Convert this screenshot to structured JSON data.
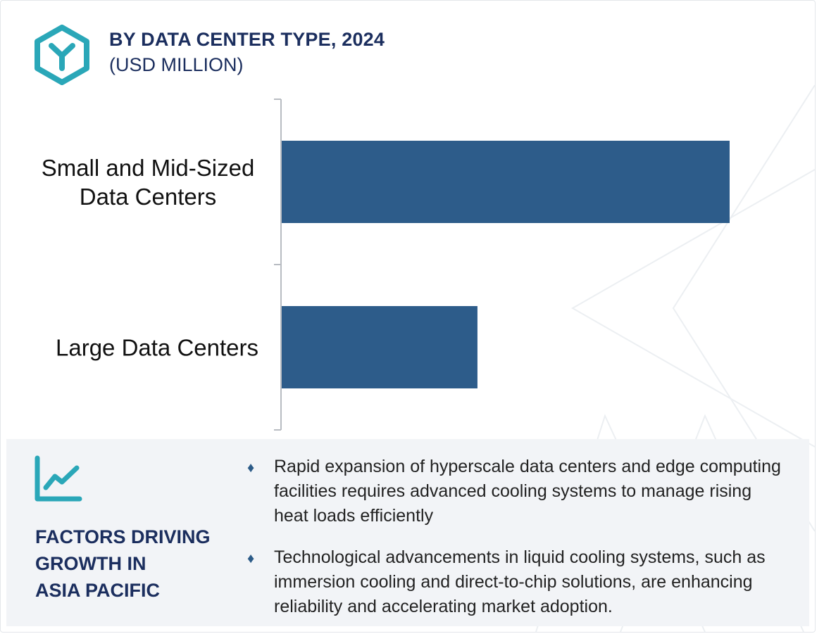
{
  "header": {
    "title": "BY DATA CENTER TYPE, 2024",
    "subtitle": "(USD MILLION)"
  },
  "colors": {
    "bar": "#2d5c8a",
    "title": "#1b2e5e",
    "accent": "#2aa7b8",
    "panel_bg": "#f2f4f7"
  },
  "icons": {
    "logo": "hexagon-y-logo-icon",
    "trend": "line-chart-trend-icon",
    "bullet": "diamond-bullet-icon"
  },
  "chart_data": {
    "type": "bar",
    "orientation": "horizontal",
    "title": "BY DATA CENTER TYPE, 2024",
    "subtitle": "(USD MILLION)",
    "categories": [
      [
        "Small and Mid-Sized",
        "Data Centers"
      ],
      [
        "Large Data Centers"
      ]
    ],
    "values": [
      100,
      43.7
    ],
    "value_scale": "relative (no value axis shown)",
    "grid": false,
    "legend": "none"
  },
  "factors": {
    "title_lines": [
      "FACTORS DRIVING",
      "GROWTH IN",
      "ASIA PACIFIC"
    ],
    "bullets": [
      {
        "lines": [
          "Rapid expansion of hyperscale data centers and edge computing",
          "facilities requires advanced cooling systems to manage rising",
          "heat loads efficiently"
        ]
      },
      {
        "lines": [
          "Technological advancements in liquid cooling systems, such as",
          "immersion cooling and direct-to-chip solutions, are enhancing",
          "reliability and accelerating market adoption."
        ]
      }
    ]
  }
}
